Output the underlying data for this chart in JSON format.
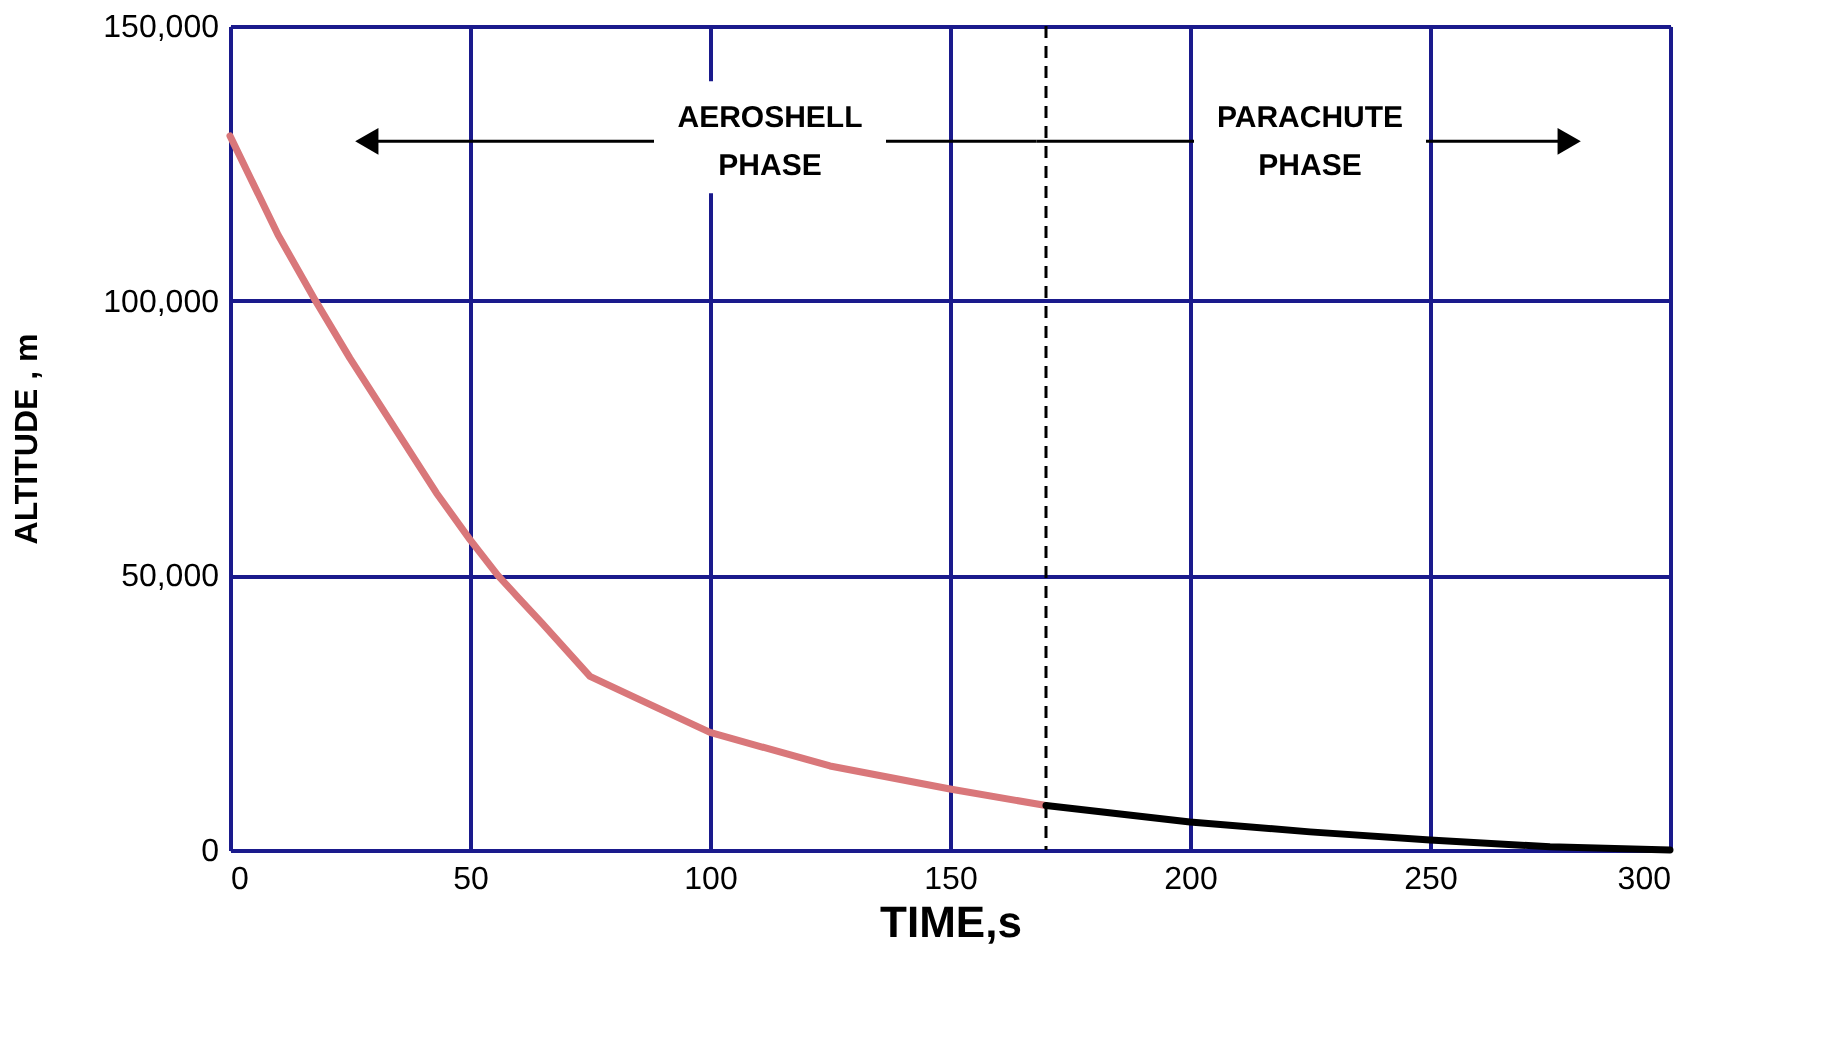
{
  "chart_data": {
    "type": "line",
    "xlabel": "TIME,s",
    "ylabel": "ALTITUDE , m",
    "xlim": [
      0,
      300
    ],
    "xticks": [
      0,
      50,
      100,
      150,
      200,
      250,
      300
    ],
    "ylim": [
      0,
      150000
    ],
    "yticks": [
      0,
      {
        "value": 50000,
        "label": "50,000"
      },
      {
        "value": 100000,
        "label": "100,000"
      },
      {
        "value": 150000,
        "label": "150,000"
      }
    ],
    "grid": true,
    "legend": false,
    "marker": "none",
    "line_style": "solid",
    "series": [
      {
        "color": "#d9777a",
        "x": [
          0,
          10,
          17.8,
          25,
          43,
          50,
          55.8,
          60,
          65,
          75,
          85,
          100,
          125,
          150,
          170
        ],
        "values": [
          130000,
          112000,
          100000,
          89500,
          65000,
          56500,
          50000,
          46000,
          41300,
          31600,
          27500,
          21400,
          15300,
          11100,
          8100
        ]
      },
      {
        "color": "#000000",
        "x": [
          170,
          200,
          225,
          250,
          275,
          300
        ],
        "values": [
          8100,
          5100,
          3300,
          1800,
          600,
          0
        ]
      }
    ],
    "ref_lines": [
      {
        "axis": "x",
        "value": 170,
        "line_style": "dashed",
        "color": "#000000"
      }
    ],
    "annotations": [
      "AEROSHELL\nPHASE",
      "PARACHUTE\nPHASE"
    ]
  }
}
